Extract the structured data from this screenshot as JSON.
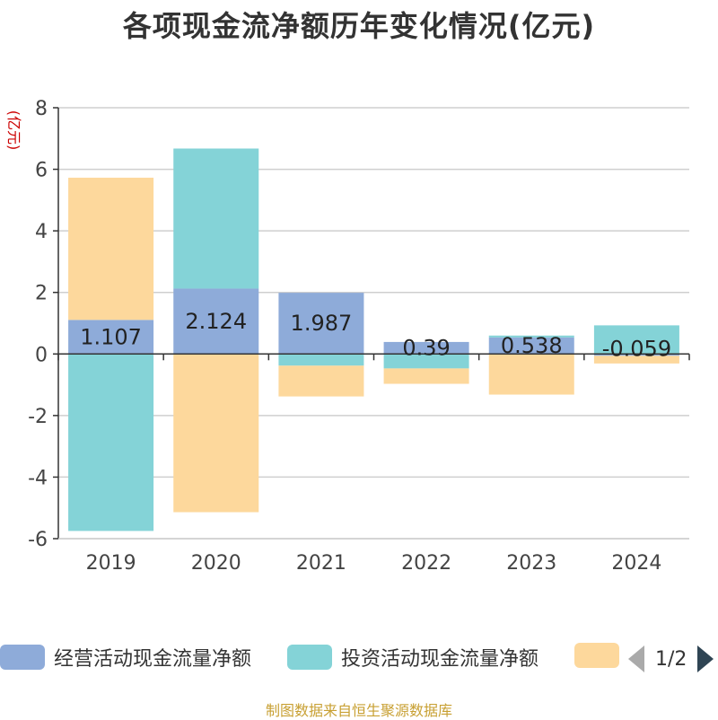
{
  "title": "各项现金流净额历年变化情况(亿元)",
  "source_note": "制图数据来自恒生聚源数据库",
  "chart_data": {
    "type": "bar",
    "stacked": true,
    "y_unit_label": "(亿元)",
    "ylim": [
      -6,
      8
    ],
    "yticks": [
      8,
      6,
      4,
      2,
      0,
      -2,
      -4,
      -6
    ],
    "grid": true,
    "categories": [
      "2019",
      "2020",
      "2021",
      "2022",
      "2023",
      "2024"
    ],
    "series": [
      {
        "name": "经营活动现金流量净额",
        "color": "#8eabd9",
        "values": [
          1.107,
          2.124,
          1.987,
          0.39,
          0.538,
          -0.059
        ],
        "labels": [
          "1.107",
          "2.124",
          "1.987",
          "0.39",
          "0.538",
          "-0.059"
        ]
      },
      {
        "name": "投资活动现金流量净额",
        "color": "#84d3d7",
        "values": [
          -5.75,
          4.55,
          -0.38,
          -0.47,
          0.06,
          0.93
        ]
      },
      {
        "name": "",
        "color": "#fdd89c",
        "values": [
          4.62,
          -5.14,
          -1.0,
          -0.5,
          -1.32,
          -0.25
        ]
      }
    ],
    "legend_position": "bottom",
    "legend_page": "1/2"
  }
}
